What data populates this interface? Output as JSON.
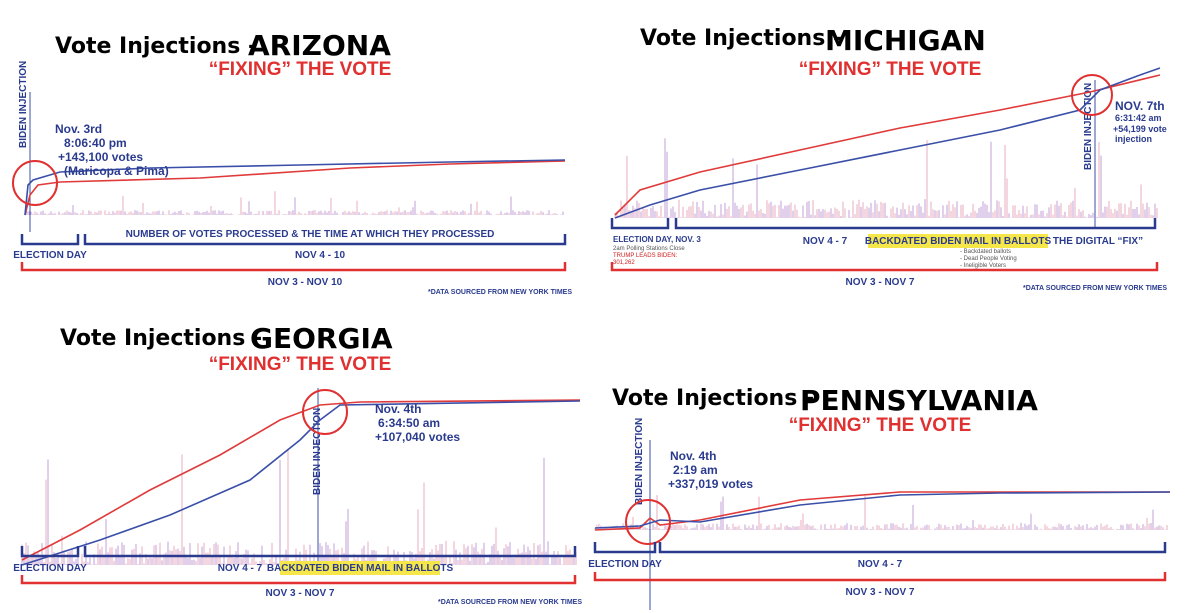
{
  "panels": [
    {
      "title": "Vote Injections -",
      "state": "ARIZONA",
      "subtitle": "“FIXING” THE VOTE",
      "marker": "BIDEN INJECTION",
      "annotation": [
        "Nov. 3rd",
        "8:06:40 pm",
        "+143,100 votes",
        "(Maricopa & Pima)"
      ],
      "labels": [
        "NUMBER OF VOTES PROCESSED & THE TIME AT WHICH THEY PROCESSED",
        "ELECTION DAY",
        "NOV 4 - 10",
        "NOV 3 - NOV 10"
      ],
      "footnote": "*DATA SOURCED FROM NEW YORK TIMES"
    },
    {
      "title": "Vote Injections -",
      "state": "MICHIGAN",
      "subtitle": "“FIXING” THE VOTE",
      "marker": "BIDEN INJECTION",
      "annotation": [
        "NOV. 7th",
        "6:31:42 am",
        "+54,199 vote",
        "injection"
      ],
      "labels": [
        "ELECTION DAY, NOV. 3",
        "2am Polling Stations Close",
        "TRUMP LEADS BIDEN:",
        "301,262",
        "NOV 4 - 7",
        "BACKDATED BIDEN MAIL IN BALLOTS",
        "- Backdated ballots",
        "- Dead People Voting",
        "- Ineligible Voters",
        "THE DIGITAL “FIX”",
        "NOV 3 - NOV 7"
      ],
      "footnote": "*DATA SOURCED FROM NEW YORK TIMES"
    },
    {
      "title": "Vote Injections -",
      "state": "GEORGIA",
      "subtitle": "“FIXING” THE VOTE",
      "marker": "BIDEN INJECTION",
      "annotation": [
        "Nov. 4th",
        "6:34:50 am",
        "+107,040 votes"
      ],
      "labels": [
        "ELECTION DAY",
        "NOV 4 - 7",
        "BACKDATED BIDEN MAIL IN BALLOTS",
        "NOV 3 - NOV 7"
      ],
      "footnote": "*DATA SOURCED FROM NEW YORK TIMES"
    },
    {
      "title": "Vote Injections -",
      "state": "PENNSYLVANIA",
      "subtitle": "“FIXING” THE VOTE",
      "marker": "BIDEN INJECTION",
      "annotation": [
        "Nov. 4th",
        "2:19 am",
        "+337,019 votes"
      ],
      "labels": [
        "ELECTION DAY",
        "NOV 4 - 7",
        "NOV 3 - NOV 7"
      ]
    }
  ]
}
